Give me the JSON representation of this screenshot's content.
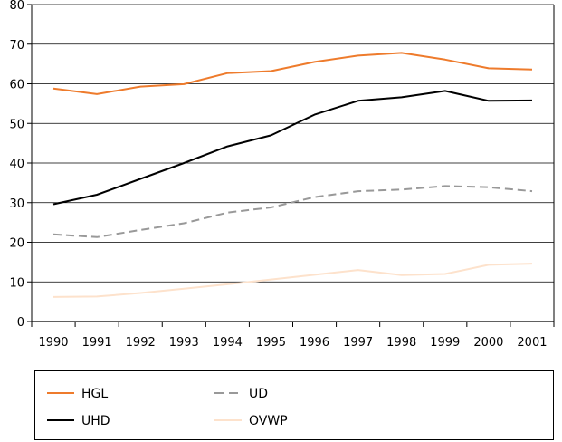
{
  "chart_data": {
    "type": "line",
    "title": "",
    "xlabel": "",
    "ylabel": "",
    "categories": [
      "1990",
      "1991",
      "1992",
      "1993",
      "1994",
      "1995",
      "1996",
      "1997",
      "1998",
      "1999",
      "2000",
      "2001"
    ],
    "ylim": [
      0,
      80
    ],
    "yticks": [
      "0",
      "10",
      "20",
      "30",
      "40",
      "50",
      "60",
      "70",
      "80"
    ],
    "grid": "horizontal",
    "legend_position": "bottom",
    "series": [
      {
        "name": "HGL",
        "color": "#ee7b2c",
        "dash": "solid",
        "values": [
          58.8,
          57.4,
          59.3,
          59.9,
          62.7,
          63.2,
          65.5,
          67.1,
          67.8,
          66.1,
          63.9,
          63.6
        ]
      },
      {
        "name": "UHD",
        "color": "#000000",
        "dash": "solid",
        "values": [
          29.6,
          32.0,
          36.0,
          40.0,
          44.2,
          47.0,
          52.2,
          55.7,
          56.6,
          58.2,
          55.7,
          55.8
        ]
      },
      {
        "name": "UD",
        "color": "#999999",
        "dash": "dashed",
        "values": [
          22.0,
          21.3,
          23.1,
          24.8,
          27.5,
          28.8,
          31.4,
          32.9,
          33.3,
          34.2,
          33.9,
          32.9
        ]
      },
      {
        "name": "OVWP",
        "color": "#fde2cc",
        "dash": "solid",
        "values": [
          6.2,
          6.3,
          7.2,
          8.3,
          9.4,
          10.6,
          11.8,
          13.0,
          11.7,
          12.0,
          14.3,
          14.6
        ]
      }
    ]
  }
}
